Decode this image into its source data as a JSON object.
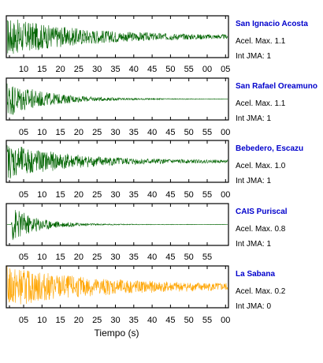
{
  "chart_data": [
    {
      "type": "line",
      "station": "San Ignacio Acosta",
      "accel_label": "Acel. Max. 1.1",
      "jma_label": "Int JMA: 1",
      "color": "#006400",
      "tick_labels": [
        "10",
        "15",
        "20",
        "25",
        "30",
        "35",
        "40",
        "45",
        "50",
        "55",
        "00",
        "05"
      ],
      "envelope": {
        "peak": 0.95,
        "onset": 0.0,
        "decay": 0.35,
        "noise": 0.06
      }
    },
    {
      "type": "line",
      "station": "San Rafael Oreamuno",
      "accel_label": "Acel. Max. 1.1",
      "jma_label": "Int JMA: 1",
      "color": "#006400",
      "tick_labels": [
        "05",
        "10",
        "15",
        "20",
        "25",
        "30",
        "35",
        "40",
        "45",
        "50",
        "55",
        "00"
      ],
      "envelope": {
        "peak": 0.95,
        "onset": 0.0,
        "decay": 0.18,
        "noise": 0.01
      }
    },
    {
      "type": "line",
      "station": "Bebedero, Escazu",
      "accel_label": "Acel. Max. 1.0",
      "jma_label": "Int JMA: 1",
      "color": "#006400",
      "tick_labels": [
        "05",
        "10",
        "15",
        "20",
        "25",
        "30",
        "35",
        "40",
        "45",
        "50",
        "55",
        "00"
      ],
      "envelope": {
        "peak": 0.9,
        "onset": 0.0,
        "decay": 0.3,
        "noise": 0.04
      }
    },
    {
      "type": "line",
      "station": "CAIS Puriscal",
      "accel_label": "Acel. Max. 0.8",
      "jma_label": "Int JMA: 1",
      "color": "#006400",
      "tick_labels": [
        "05",
        "10",
        "15",
        "20",
        "25",
        "30",
        "35",
        "40",
        "45",
        "50",
        "55"
      ],
      "envelope": {
        "peak": 0.95,
        "onset": 0.02,
        "decay": 0.12,
        "noise": 0.01
      }
    },
    {
      "type": "line",
      "station": "La Sabana",
      "accel_label": "Acel. Max. 0.2",
      "jma_label": "Int JMA: 0",
      "color": "#ffa500",
      "tick_labels": [
        "05",
        "10",
        "15",
        "20",
        "25",
        "30",
        "35",
        "40",
        "45",
        "50",
        "55",
        "00"
      ],
      "envelope": {
        "peak": 0.95,
        "onset": 0.0,
        "decay": 0.4,
        "noise": 0.12
      }
    }
  ],
  "xlabel": "Tiempo (s)"
}
